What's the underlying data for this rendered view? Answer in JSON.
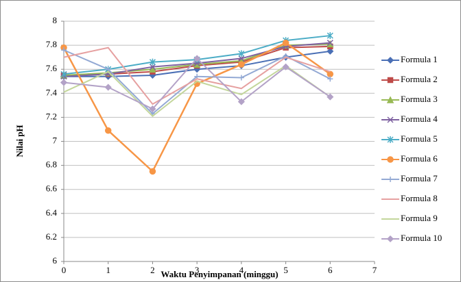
{
  "chart_data": {
    "type": "line",
    "x_label": "Waktu Penyimpanan (minggu)",
    "y_label": "Nilai pH",
    "x": [
      0,
      1,
      2,
      3,
      4,
      5,
      6
    ],
    "xlim": [
      0,
      7
    ],
    "xticks": [
      0,
      1,
      2,
      3,
      4,
      5,
      6,
      7
    ],
    "ylim": [
      6,
      8
    ],
    "yticks": [
      6,
      6.2,
      6.4,
      6.6,
      6.8,
      7,
      7.2,
      7.4,
      7.6,
      7.8,
      8
    ],
    "grid": true,
    "legend": "right",
    "series": [
      {
        "name": "Formula 1",
        "color": "#4a6fb5",
        "marker": "diamond",
        "values": [
          7.54,
          7.54,
          7.55,
          7.6,
          7.63,
          7.7,
          7.75
        ]
      },
      {
        "name": "Formula 2",
        "color": "#be4b48",
        "marker": "square",
        "values": [
          7.55,
          7.56,
          7.58,
          7.63,
          7.66,
          7.78,
          7.79
        ]
      },
      {
        "name": "Formula 3",
        "color": "#98b954",
        "marker": "triangle",
        "values": [
          7.55,
          7.57,
          7.6,
          7.64,
          7.67,
          7.8,
          7.81
        ]
      },
      {
        "name": "Formula 4",
        "color": "#7d60a0",
        "marker": "x",
        "values": [
          7.54,
          7.56,
          7.62,
          7.65,
          7.69,
          7.79,
          7.82
        ]
      },
      {
        "name": "Formula 5",
        "color": "#4bacc6",
        "marker": "star",
        "values": [
          7.56,
          7.6,
          7.66,
          7.68,
          7.73,
          7.84,
          7.88
        ]
      },
      {
        "name": "Formula 6",
        "color": "#f79646",
        "marker": "circle",
        "values": [
          7.78,
          7.09,
          6.75,
          7.48,
          7.64,
          7.82,
          7.56
        ]
      },
      {
        "name": "Formula 7",
        "color": "#93a9d4",
        "marker": "plus",
        "values": [
          7.76,
          7.6,
          7.23,
          7.54,
          7.53,
          7.71,
          7.52
        ]
      },
      {
        "name": "Formula 8",
        "color": "#e6a0a0",
        "marker": "none",
        "values": [
          7.7,
          7.78,
          7.31,
          7.52,
          7.44,
          7.7,
          7.58
        ]
      },
      {
        "name": "Formula 9",
        "color": "#c3d69b",
        "marker": "none",
        "values": [
          7.41,
          7.58,
          7.21,
          7.5,
          7.39,
          7.63,
          7.37
        ]
      },
      {
        "name": "Formula 10",
        "color": "#b3a2c7",
        "marker": "diamond",
        "values": [
          7.49,
          7.45,
          7.27,
          7.69,
          7.33,
          7.62,
          7.37
        ]
      }
    ]
  }
}
